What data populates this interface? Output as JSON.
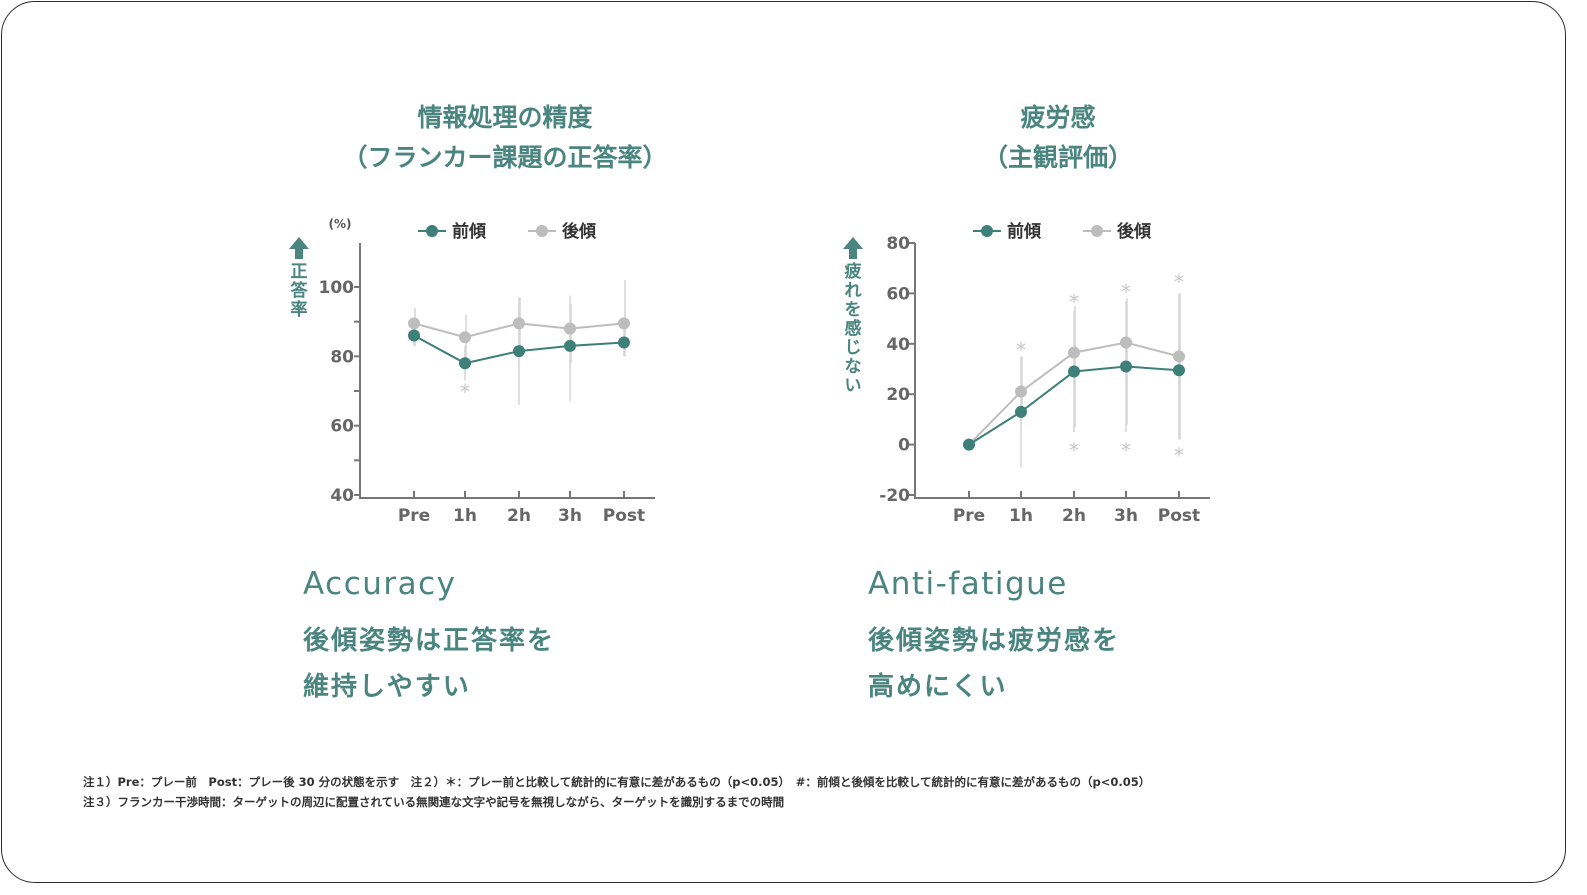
{
  "colors": {
    "accent": "#4a8580",
    "front": "#3d7f79",
    "back": "#bdbdbd",
    "axis": "#777777"
  },
  "panels": [
    {
      "title_lines": [
        "情報処理の精度",
        "（フランカー課題の正答率）"
      ],
      "heading": "Accuracy",
      "message_lines": [
        "後傾姿勢は正答率を",
        "維持しやすい"
      ]
    },
    {
      "title_lines": [
        "疲労感",
        "（主観評価）"
      ],
      "heading": "Anti-fatigue",
      "message_lines": [
        "後傾姿勢は疲労感を",
        "高めにくい"
      ]
    }
  ],
  "notes": [
    "注１）Pre：プレー前　Post：プレー後 30 分の状態を示す　注２）＊：プレー前と比較して統計的に有意に差があるもの（p<0.05）　#：前傾と後傾を比較して統計的に有意に差があるもの（p<0.05）",
    "注３）フランカー干渉時間：ターゲットの周辺に配置されている無関連な文字や記号を無視しながら、ターゲットを識別するまでの時間"
  ],
  "chart_data": [
    {
      "type": "line",
      "categories": [
        "Pre",
        "1h",
        "2h",
        "3h",
        "Post"
      ],
      "unit_label": "(%)",
      "ylabel": "正答率",
      "ylim": [
        40,
        100
      ],
      "yticks": [
        40,
        60,
        80,
        100
      ],
      "series": [
        {
          "name": "前傾",
          "values": [
            86,
            78,
            81.5,
            83,
            84
          ],
          "err_low": [
            83,
            73,
            66,
            67,
            80
          ],
          "err_high": [
            89,
            83,
            97,
            97.5,
            88
          ]
        },
        {
          "name": "後傾",
          "values": [
            89.5,
            85.5,
            89.5,
            88,
            89.5
          ],
          "err_low": [
            83,
            78,
            82,
            78,
            80
          ],
          "err_high": [
            94,
            92,
            97,
            95,
            102
          ]
        }
      ],
      "annotations": [
        {
          "text": "*",
          "category": "1h",
          "y": 70
        }
      ],
      "legend": "top",
      "grid": false
    },
    {
      "type": "line",
      "categories": [
        "Pre",
        "1h",
        "2h",
        "3h",
        "Post"
      ],
      "ylabel": "疲れを感じない",
      "ylim": [
        -20,
        80
      ],
      "yticks": [
        -20,
        0,
        20,
        40,
        60,
        80
      ],
      "series": [
        {
          "name": "前傾",
          "values": [
            0,
            13,
            29,
            31,
            29.5
          ],
          "err_low": [
            0,
            -9,
            5,
            5,
            2
          ],
          "err_high": [
            0,
            35,
            53,
            57,
            60
          ]
        },
        {
          "name": "後傾",
          "values": [
            0,
            21,
            36.5,
            40.5,
            35
          ],
          "err_low": [
            0,
            10,
            7,
            8,
            2
          ],
          "err_high": [
            0,
            35,
            55,
            58,
            60
          ]
        }
      ],
      "annotations": [
        {
          "text": "*",
          "category": "1h",
          "y": 38
        },
        {
          "text": "*",
          "category": "2h",
          "y": 57
        },
        {
          "text": "*",
          "category": "3h",
          "y": 61
        },
        {
          "text": "*",
          "category": "Post",
          "y": 65
        },
        {
          "text": "*",
          "category": "2h",
          "y": -2
        },
        {
          "text": "*",
          "category": "3h",
          "y": -2
        },
        {
          "text": "*",
          "category": "Post",
          "y": -4
        }
      ],
      "legend": "top",
      "grid": false
    }
  ]
}
